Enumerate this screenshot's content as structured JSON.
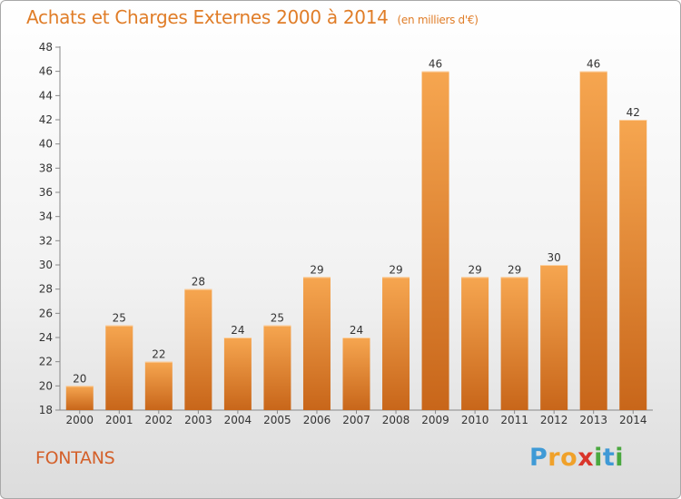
{
  "header": {
    "title": "Achats et Charges Externes 2000 à 2014",
    "subtitle": "(en milliers d'€)"
  },
  "footer": {
    "commune": "FONTANS",
    "logo": [
      "P",
      "r",
      "o",
      "x",
      "i",
      "t",
      "i"
    ],
    "logo_colors": [
      "#3f9ad6",
      "#f0a12a",
      "#f0a12a",
      "#d9352b",
      "#4aa83f",
      "#3f9ad6",
      "#4aa83f"
    ]
  },
  "chart_data": {
    "type": "bar",
    "categories": [
      "2000",
      "2001",
      "2002",
      "2003",
      "2004",
      "2005",
      "2006",
      "2007",
      "2008",
      "2009",
      "2010",
      "2011",
      "2012",
      "2013",
      "2014"
    ],
    "values": [
      20,
      25,
      22,
      28,
      24,
      25,
      29,
      24,
      29,
      46,
      29,
      29,
      30,
      46,
      42
    ],
    "labels": [
      "20",
      "25",
      "22",
      "28",
      "24",
      "25",
      "29",
      "24",
      "29",
      "46",
      "29",
      "29",
      "30",
      "46",
      "42"
    ],
    "yticks": [
      "18",
      "20",
      "22",
      "24",
      "26",
      "28",
      "30",
      "32",
      "34",
      "36",
      "38",
      "40",
      "42",
      "44",
      "46",
      "48"
    ],
    "ylim": [
      18,
      48
    ],
    "grid": false,
    "bar_color": "#f0922e"
  }
}
